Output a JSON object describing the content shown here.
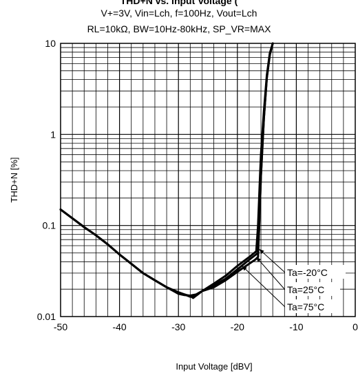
{
  "chart_data": {
    "type": "line",
    "title": "THD+N vs. Input Voltage (",
    "subtitle_lines": [
      "V+=3V, Vin=Lch, f=100Hz, Vout=Lch",
      "RL=10kΩ, BW=10Hz-80kHz, SP_VR=MAX"
    ],
    "xlabel": "Input Voltage [dBV]",
    "ylabel": "THD+N [%]",
    "xlim": [
      -50,
      0
    ],
    "ylim": [
      0.01,
      10
    ],
    "yscale": "log",
    "grid": true,
    "x_ticks": [
      "-50",
      "-40",
      "-30",
      "-20",
      "-10",
      "0"
    ],
    "y_ticks": [
      "0.01",
      "0.1",
      "1",
      "10"
    ],
    "series": [
      {
        "name": "Ta=-20°C",
        "x": [
          -50,
          -48,
          -46,
          -44,
          -42,
          -40,
          -38,
          -36,
          -34,
          -32,
          -30,
          -29,
          -28,
          -27,
          -26,
          -24,
          -22,
          -20,
          -18,
          -16.5,
          -16.3,
          -16.0,
          -15.5,
          -15.0,
          -14.5,
          -14.0
        ],
        "y": [
          0.15,
          0.12,
          0.096,
          0.078,
          0.062,
          0.048,
          0.038,
          0.03,
          0.025,
          0.021,
          0.018,
          0.0175,
          0.0165,
          0.017,
          0.019,
          0.022,
          0.026,
          0.033,
          0.042,
          0.05,
          0.1,
          0.35,
          1.5,
          4.2,
          7.5,
          10
        ]
      },
      {
        "name": "Ta=25°C",
        "x": [
          -50,
          -48,
          -46,
          -44,
          -42,
          -40,
          -38,
          -36,
          -34,
          -32,
          -30,
          -29,
          -28,
          -27.5,
          -27,
          -26,
          -24,
          -22,
          -20,
          -18,
          -17,
          -16.5,
          -16.3,
          -16.0,
          -15.5,
          -15.0,
          -14.5,
          -14.0
        ],
        "y": [
          0.15,
          0.12,
          0.096,
          0.078,
          0.062,
          0.048,
          0.038,
          0.03,
          0.025,
          0.021,
          0.0185,
          0.0175,
          0.0168,
          0.016,
          0.017,
          0.019,
          0.021,
          0.025,
          0.031,
          0.038,
          0.042,
          0.045,
          0.1,
          0.35,
          1.5,
          4.2,
          7.5,
          10
        ]
      },
      {
        "name": "Ta=75°C",
        "x": [
          -50,
          -48,
          -46,
          -44,
          -42,
          -40,
          -38,
          -36,
          -34,
          -32,
          -30,
          -29,
          -28,
          -27,
          -26,
          -24,
          -22,
          -20,
          -18,
          -16.8,
          -16.5,
          -16.2,
          -16.0,
          -15.5,
          -15.0,
          -14.5,
          -14.0
        ],
        "y": [
          0.15,
          0.12,
          0.096,
          0.078,
          0.062,
          0.048,
          0.038,
          0.03,
          0.025,
          0.021,
          0.0178,
          0.0172,
          0.017,
          0.0175,
          0.019,
          0.023,
          0.028,
          0.036,
          0.045,
          0.052,
          0.1,
          0.3,
          0.6,
          1.8,
          4.5,
          7.8,
          10
        ]
      }
    ],
    "annotations": [
      "Ta=-20°C",
      "Ta=25°C",
      "Ta=75°C"
    ]
  }
}
